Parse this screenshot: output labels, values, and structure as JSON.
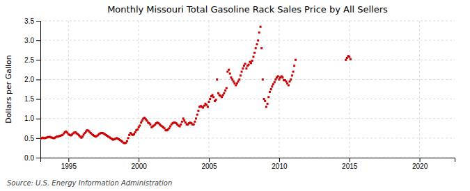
{
  "chart_data": {
    "type": "scatter",
    "title": "Monthly Missouri Total Gasoline Rack Sales Price by All Sellers",
    "ylabel": "Dollars per Gallon",
    "annotations": [
      "Source: U.S. Energy Information Administration"
    ],
    "color": "#cc0000",
    "marker": "square",
    "grid": true,
    "xlim": [
      1993.0,
      2022.5
    ],
    "ylim": [
      0.0,
      3.5
    ],
    "xticks": [
      1995,
      2000,
      2005,
      2010,
      2015,
      2020
    ],
    "yticks": [
      {
        "value": 0.0,
        "label": "0.0"
      },
      0.5,
      {
        "value": 1.0,
        "label": "1.0"
      },
      1.5,
      {
        "value": 2.0,
        "label": "2.0"
      },
      2.5,
      {
        "value": 3.0,
        "label": "3.0"
      },
      3.5
    ],
    "x": [
      1993.0,
      1993.08,
      1993.17,
      1993.25,
      1993.33,
      1993.42,
      1993.5,
      1993.58,
      1993.67,
      1993.75,
      1993.83,
      1993.92,
      1994.0,
      1994.08,
      1994.17,
      1994.25,
      1994.33,
      1994.42,
      1994.5,
      1994.58,
      1994.67,
      1994.75,
      1994.83,
      1994.92,
      1995.0,
      1995.08,
      1995.17,
      1995.25,
      1995.33,
      1995.42,
      1995.5,
      1995.58,
      1995.67,
      1995.75,
      1995.83,
      1995.92,
      1996.0,
      1996.08,
      1996.17,
      1996.25,
      1996.33,
      1996.42,
      1996.5,
      1996.58,
      1996.67,
      1996.75,
      1996.83,
      1996.92,
      1997.0,
      1997.08,
      1997.17,
      1997.25,
      1997.33,
      1997.42,
      1997.5,
      1997.58,
      1997.67,
      1997.75,
      1997.83,
      1997.92,
      1998.0,
      1998.08,
      1998.17,
      1998.25,
      1998.33,
      1998.42,
      1998.5,
      1998.58,
      1998.67,
      1998.75,
      1998.83,
      1998.92,
      1999.0,
      1999.08,
      1999.17,
      1999.25,
      1999.33,
      1999.42,
      1999.5,
      1999.58,
      1999.67,
      1999.75,
      1999.83,
      1999.92,
      2000.0,
      2000.08,
      2000.17,
      2000.25,
      2000.33,
      2000.42,
      2000.5,
      2000.58,
      2000.67,
      2000.75,
      2000.83,
      2000.92,
      2001.0,
      2001.08,
      2001.17,
      2001.25,
      2001.33,
      2001.42,
      2001.5,
      2001.58,
      2001.67,
      2001.75,
      2001.83,
      2001.92,
      2002.0,
      2002.08,
      2002.17,
      2002.25,
      2002.33,
      2002.42,
      2002.5,
      2002.58,
      2002.67,
      2002.75,
      2002.83,
      2002.92,
      2003.0,
      2003.08,
      2003.17,
      2003.25,
      2003.33,
      2003.42,
      2003.5,
      2003.58,
      2003.67,
      2003.75,
      2003.83,
      2003.92,
      2004.0,
      2004.08,
      2004.17,
      2004.25,
      2004.33,
      2004.42,
      2004.5,
      2004.58,
      2004.67,
      2004.75,
      2004.83,
      2004.92,
      2005.0,
      2005.08,
      2005.17,
      2005.25,
      2005.33,
      2005.42,
      2005.5,
      2005.58,
      2005.67,
      2005.75,
      2005.83,
      2005.92,
      2006.0,
      2006.08,
      2006.17,
      2006.25,
      2006.33,
      2006.42,
      2006.5,
      2006.58,
      2006.67,
      2006.75,
      2006.83,
      2006.92,
      2007.0,
      2007.08,
      2007.17,
      2007.25,
      2007.33,
      2007.42,
      2007.5,
      2007.58,
      2007.67,
      2007.75,
      2007.83,
      2007.92,
      2008.0,
      2008.08,
      2008.17,
      2008.25,
      2008.33,
      2008.42,
      2008.5,
      2008.58,
      2008.67,
      2008.75,
      2008.83,
      2008.92,
      2009.0,
      2009.08,
      2009.17,
      2009.25,
      2009.33,
      2009.42,
      2009.5,
      2009.58,
      2009.67,
      2009.75,
      2009.83,
      2009.92,
      2010.0,
      2010.08,
      2010.17,
      2010.25,
      2010.33,
      2010.42,
      2010.5,
      2010.58,
      2010.67,
      2010.75,
      2010.83,
      2010.92,
      2011.0,
      2011.08,
      2011.17,
      2014.75,
      2014.83,
      2014.92,
      2015.0,
      2015.08
    ],
    "values": [
      0.49,
      0.5,
      0.51,
      0.5,
      0.5,
      0.51,
      0.52,
      0.53,
      0.53,
      0.52,
      0.51,
      0.5,
      0.5,
      0.52,
      0.54,
      0.54,
      0.55,
      0.56,
      0.57,
      0.58,
      0.62,
      0.65,
      0.67,
      0.64,
      0.6,
      0.58,
      0.57,
      0.59,
      0.62,
      0.64,
      0.65,
      0.62,
      0.6,
      0.57,
      0.54,
      0.51,
      0.54,
      0.59,
      0.63,
      0.67,
      0.7,
      0.69,
      0.66,
      0.63,
      0.6,
      0.58,
      0.56,
      0.54,
      0.55,
      0.57,
      0.6,
      0.62,
      0.63,
      0.63,
      0.62,
      0.6,
      0.58,
      0.56,
      0.54,
      0.52,
      0.5,
      0.48,
      0.46,
      0.47,
      0.48,
      0.5,
      0.49,
      0.47,
      0.45,
      0.43,
      0.41,
      0.38,
      0.37,
      0.38,
      0.42,
      0.5,
      0.58,
      0.63,
      0.6,
      0.58,
      0.6,
      0.65,
      0.7,
      0.72,
      0.78,
      0.82,
      0.9,
      0.95,
      1.0,
      1.02,
      0.98,
      0.95,
      0.9,
      0.88,
      0.85,
      0.78,
      0.8,
      0.82,
      0.85,
      0.88,
      0.9,
      0.88,
      0.85,
      0.82,
      0.8,
      0.78,
      0.75,
      0.7,
      0.7,
      0.72,
      0.75,
      0.8,
      0.85,
      0.88,
      0.9,
      0.9,
      0.88,
      0.85,
      0.82,
      0.8,
      0.85,
      0.92,
      1.0,
      0.95,
      0.9,
      0.85,
      0.85,
      0.88,
      0.9,
      0.88,
      0.85,
      0.85,
      0.92,
      1.0,
      1.1,
      1.2,
      1.3,
      1.32,
      1.3,
      1.28,
      1.33,
      1.38,
      1.35,
      1.3,
      1.43,
      1.5,
      1.57,
      1.6,
      1.55,
      1.45,
      1.48,
      2.0,
      1.65,
      1.6,
      1.58,
      1.55,
      1.6,
      1.65,
      1.72,
      1.78,
      2.2,
      2.25,
      2.15,
      2.05,
      2.0,
      1.95,
      1.9,
      1.85,
      1.9,
      1.95,
      2.0,
      2.1,
      2.2,
      2.28,
      2.35,
      2.4,
      2.28,
      2.35,
      2.38,
      2.45,
      2.42,
      2.48,
      2.58,
      2.68,
      2.8,
      2.9,
      3.0,
      3.2,
      3.35,
      2.8,
      2.0,
      1.5,
      1.45,
      1.3,
      1.38,
      1.55,
      1.68,
      1.75,
      1.82,
      1.88,
      1.93,
      2.0,
      2.05,
      2.08,
      2.0,
      2.05,
      2.08,
      2.05,
      1.98,
      1.98,
      1.95,
      1.9,
      1.85,
      1.95,
      2.0,
      2.1,
      2.2,
      2.35,
      2.5,
      2.5,
      2.55,
      2.6,
      2.58,
      2.52
    ]
  }
}
